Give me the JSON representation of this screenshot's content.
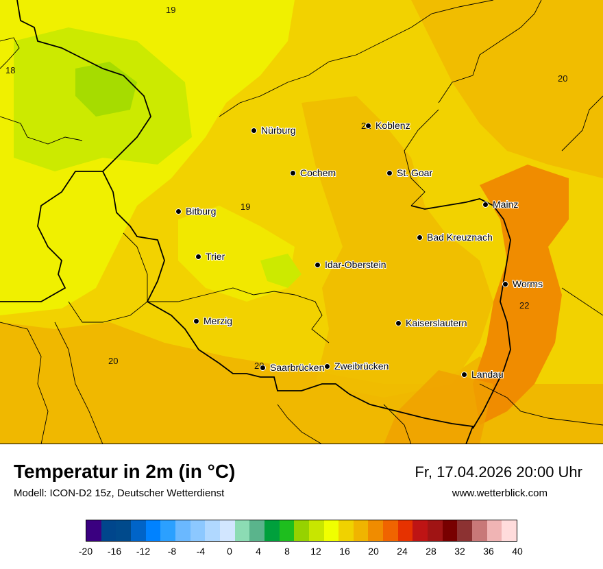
{
  "header": {
    "title": "Temperatur in 2m (in °C)",
    "subtitle": "Modell: ICON-D2 15z, Deutscher Wetterdienst",
    "datetime": "Fr, 17.04.2026 20:00 Uhr",
    "website": "www.wetterblick.com"
  },
  "map": {
    "cities": [
      {
        "name": "Nürburg"
      },
      {
        "name": "Koblenz"
      },
      {
        "name": "Cochem"
      },
      {
        "name": "St. Goar"
      },
      {
        "name": "Mainz"
      },
      {
        "name": "Bitburg"
      },
      {
        "name": "Bad Kreuznach"
      },
      {
        "name": "Trier"
      },
      {
        "name": "Idar-Oberstein"
      },
      {
        "name": "Worms"
      },
      {
        "name": "Merzig"
      },
      {
        "name": "Kaiserslautern"
      },
      {
        "name": "Saarbrücken"
      },
      {
        "name": "Zweibrücken"
      },
      {
        "name": "Landau"
      }
    ],
    "isolabels": [
      "19",
      "18",
      "20",
      "21",
      "19",
      "22",
      "20",
      "20"
    ]
  },
  "legend": {
    "colors": [
      "#3a0080",
      "#00468c",
      "#004a8c",
      "#0064c8",
      "#0082ff",
      "#2ba0ff",
      "#6ab8ff",
      "#8cc8ff",
      "#b0d8ff",
      "#d2e6ff",
      "#8cdcb4",
      "#5ab48c",
      "#00a03c",
      "#1ebe1e",
      "#96d200",
      "#c8e600",
      "#f0ff00",
      "#f0d200",
      "#f0b400",
      "#f08c00",
      "#f06400",
      "#e63200",
      "#be1414",
      "#a01414",
      "#780000",
      "#8c3232",
      "#c87878",
      "#f0b4b4",
      "#ffdcdc"
    ],
    "ticks": [
      "-20",
      "-16",
      "-12",
      "-8",
      "-4",
      "0",
      "4",
      "8",
      "12",
      "16",
      "20",
      "24",
      "28",
      "32",
      "36",
      "40"
    ],
    "range": [
      -20,
      40
    ]
  }
}
